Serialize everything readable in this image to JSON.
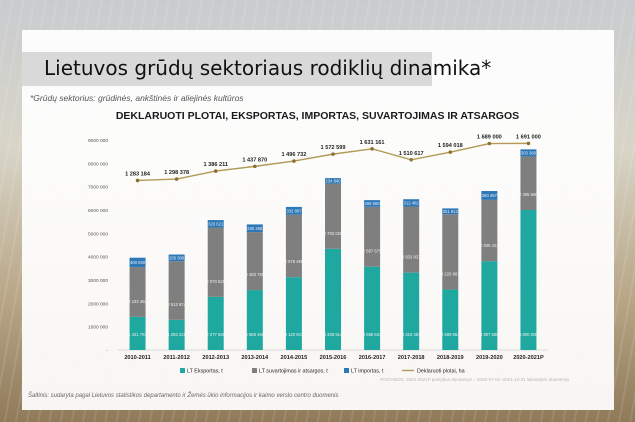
{
  "slide": {
    "title": "Lietuvos grūdų sektoriaus rodiklių dinamika*",
    "subtitle": "*Grūdų sektorius: grūdinės, ankštinės ir aliejinės kultūros",
    "source": "Šaltinis: sudaryta pagal Lietuvos statistikos departamento ir Žemės ūkio informacijos ir kaimo verslo centro duomenis",
    "note": "PASTABOS: 2020-2021P prekybos duomenys – 2020-07-01–2021-12-31 laikotarpio duomenys"
  },
  "colors": {
    "export": "#1fa8a0",
    "consumption": "#7f7f7f",
    "import": "#2f78b7",
    "area_line": "#b29a55",
    "text": "#333333"
  },
  "chart_data": {
    "type": "bar",
    "stacked": true,
    "title": "DEKLARUOTI PLOTAI, EKSPORTAS, IMPORTAS, SUVARTOJIMAS IR ATSARGOS",
    "categories": [
      "2010-2011",
      "2011-2012",
      "2012-2013",
      "2013-2014",
      "2014-2015",
      "2015-2016",
      "2016-2017",
      "2017-2018",
      "2018-2019",
      "2019-2020",
      "2020-2021P"
    ],
    "ylim": [
      0,
      9000000
    ],
    "yticks": [
      "-",
      "1000 000",
      "2000 000",
      "3000 000",
      "4000 000",
      "5000 000",
      "6000 000",
      "7000 000",
      "8000 000",
      "9000 000"
    ],
    "series": [
      {
        "name": "LT Eksportas, t",
        "values": [
          1421767,
          1293215,
          2277569,
          2568465,
          3120643,
          4338514,
          3568631,
          3315381,
          2589553,
          3807598,
          6000000
        ],
        "labels": [
          "1 421 767",
          "1 293 215",
          "2 277 569",
          "2 568 465",
          "3 120 643",
          "4 338 514",
          "3 568 631",
          "3 315 381",
          "2 589 553",
          "3 807 598",
          "6 000 000"
        ]
      },
      {
        "name": "LT suvartojimas ir atsargos, t",
        "values": [
          2132463,
          2512674,
          2970528,
          2483755,
          2678495,
          2793026,
          2567679,
          2833837,
          3226881,
          2625423,
          2295560
        ],
        "labels": [
          "2 132 463",
          "2 512 674",
          "2 970 528",
          "2 483 755",
          "2 678 495",
          "2 793 026",
          "2 567 679",
          "2 833 837",
          "3 226 881",
          "2 625 423",
          "2 295 560"
        ]
      },
      {
        "name": "LT importas, t",
        "values": [
          400930,
          285588,
          320621,
          330266,
          332867,
          234840,
          286668,
          312482,
          251912,
          380467,
          303360
        ],
        "labels": [
          "400 930",
          "285 588",
          "320 621",
          "330 266",
          "332 867",
          "234 840",
          "286 668",
          "312 482",
          "251 912",
          "380 467",
          "303 360"
        ]
      }
    ],
    "line": {
      "name": "Deklaruoti plotai, ha",
      "values": [
        1283184,
        1298378,
        1386211,
        1437870,
        1496732,
        1572599,
        1631161,
        1510617,
        1594018,
        1689000,
        1691000
      ],
      "labels": [
        "1 283 184",
        "1 298 378",
        "1 386 211",
        "1 437 870",
        "1 496 732",
        "1 572 599",
        "1 631 161",
        "1 510 617",
        "1 594 018",
        "1 689 000",
        "1 691 000"
      ]
    },
    "legend_position": "bottom"
  }
}
